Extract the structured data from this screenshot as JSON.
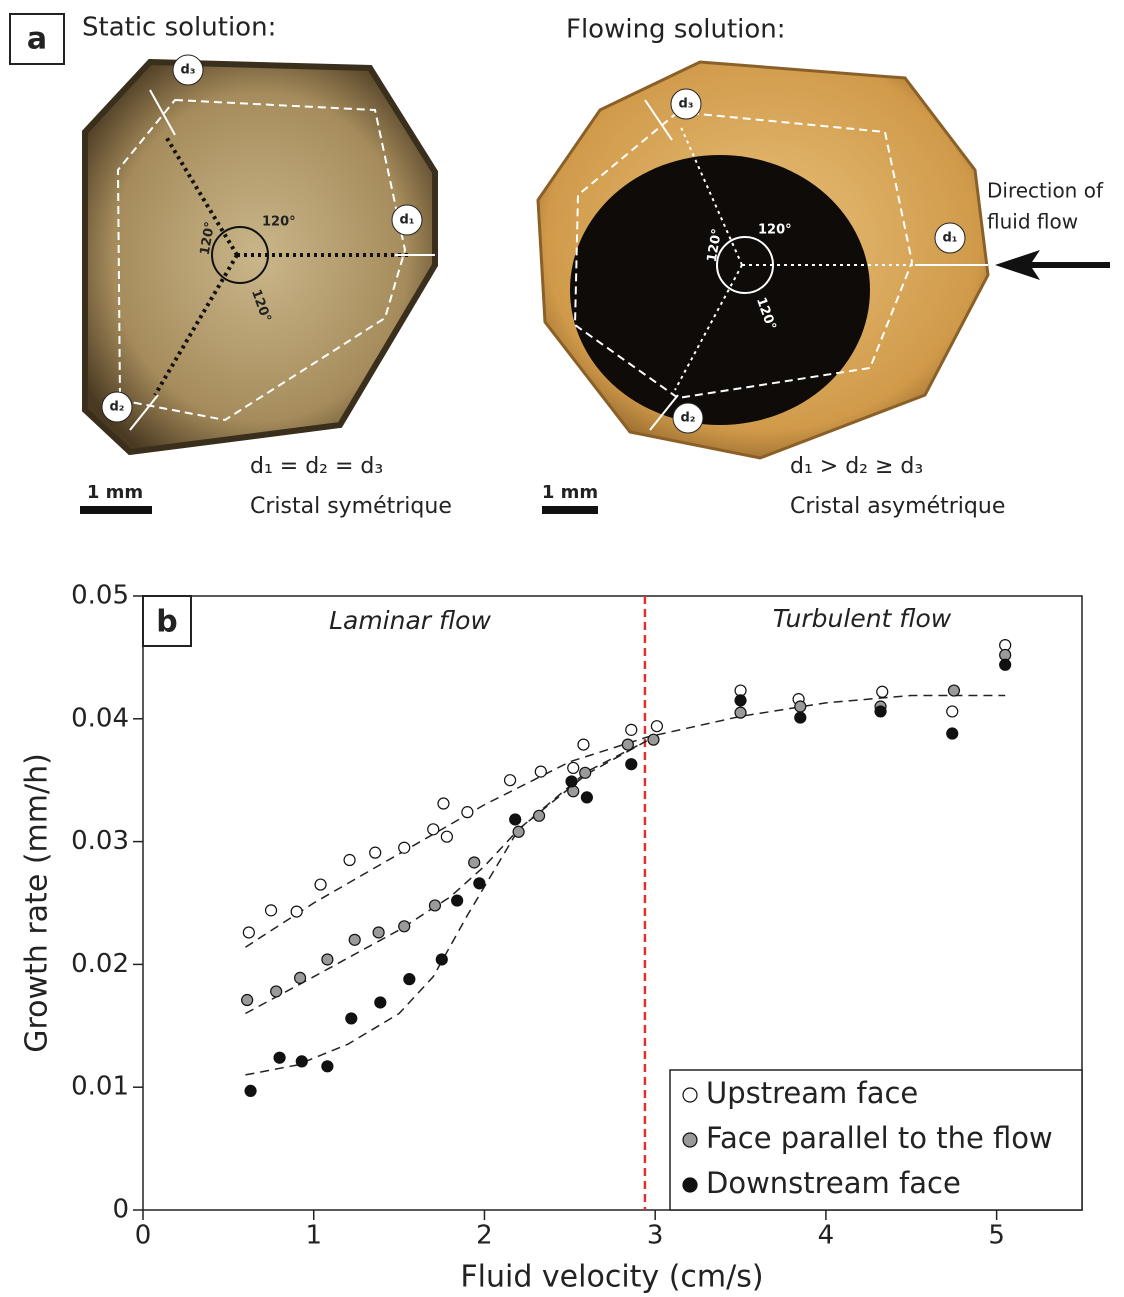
{
  "panel_a": {
    "label": "a",
    "static": {
      "title": "Static solution:",
      "d_labels": [
        "d₁",
        "d₂",
        "d₃"
      ],
      "angles": [
        "120°",
        "120°",
        "120°"
      ],
      "relation": "d₁ = d₂ = d₃",
      "caption": "Cristal symétrique",
      "scale": "1 mm"
    },
    "flowing": {
      "title": "Flowing solution:",
      "d_labels": [
        "d₁",
        "d₂",
        "d₃"
      ],
      "angles": [
        "120°",
        "120°",
        "120°"
      ],
      "flow_label": [
        "Direction of",
        "fluid flow"
      ],
      "relation": "d₁ > d₂ ≥ d₃",
      "caption": "Cristal asymétrique",
      "scale": "1 mm"
    }
  },
  "chart_data": {
    "type": "scatter",
    "panel_label": "b",
    "x_label": "Fluid velocity (cm/s)",
    "y_label": "Growth rate (mm/h)",
    "annotations": [
      "Laminar flow",
      "Turbulent flow"
    ],
    "xlim": [
      0,
      5.5
    ],
    "xticks": [
      0,
      1,
      2,
      3,
      4,
      5
    ],
    "ylim": [
      0,
      0.05
    ],
    "yticks": [
      0,
      0.01,
      0.02,
      0.03,
      0.04,
      0.05
    ],
    "threshold_x": 2.94,
    "threshold_color": "#e03030",
    "legend": "lower right",
    "series": [
      {
        "name": "Upstream face",
        "color": "#ffffff",
        "x": [
          0.62,
          0.75,
          0.9,
          1.04,
          1.21,
          1.36,
          1.53,
          1.7,
          1.76,
          1.78,
          1.9,
          2.15,
          2.33,
          2.52,
          2.58,
          2.86,
          3.01,
          3.5,
          3.84,
          4.33,
          4.74,
          5.05
        ],
        "values": [
          0.0226,
          0.0244,
          0.0243,
          0.0265,
          0.0285,
          0.0291,
          0.0295,
          0.031,
          0.0331,
          0.0304,
          0.0324,
          0.035,
          0.0357,
          0.036,
          0.0379,
          0.0391,
          0.0394,
          0.0423,
          0.0416,
          0.0422,
          0.0406,
          0.046
        ]
      },
      {
        "name": "Face parallel to the flow",
        "color": "#9a9a9a",
        "x": [
          0.61,
          0.78,
          0.92,
          1.08,
          1.24,
          1.38,
          1.53,
          1.71,
          1.94,
          2.2,
          2.32,
          2.52,
          2.59,
          2.84,
          2.99,
          3.5,
          3.85,
          4.32,
          4.75,
          5.05
        ],
        "values": [
          0.0171,
          0.0178,
          0.0189,
          0.0204,
          0.022,
          0.0226,
          0.0231,
          0.0248,
          0.0283,
          0.0308,
          0.0321,
          0.0341,
          0.0356,
          0.0379,
          0.0383,
          0.0405,
          0.041,
          0.041,
          0.0423,
          0.0452
        ]
      },
      {
        "name": "Downstream face",
        "color": "#111111",
        "x": [
          0.63,
          0.8,
          0.93,
          1.08,
          1.22,
          1.39,
          1.56,
          1.75,
          1.84,
          1.97,
          2.18,
          2.51,
          2.6,
          2.86,
          3.5,
          3.85,
          4.32,
          4.74,
          5.05
        ],
        "values": [
          0.0097,
          0.0124,
          0.0121,
          0.0117,
          0.0156,
          0.0169,
          0.0188,
          0.0204,
          0.0252,
          0.0266,
          0.0318,
          0.0349,
          0.0336,
          0.0363,
          0.0415,
          0.0401,
          0.0406,
          0.0388,
          0.0444
        ]
      }
    ],
    "trendlines": [
      {
        "x": [
          0.6,
          1.0,
          1.5,
          2.0,
          2.5,
          2.95,
          3.5,
          4.0,
          4.5,
          5.05
        ],
        "values": [
          0.0214,
          0.025,
          0.029,
          0.033,
          0.0365,
          0.0385,
          0.0402,
          0.0413,
          0.0419,
          0.0419
        ]
      },
      {
        "x": [
          0.6,
          1.0,
          1.5,
          1.8,
          2.0,
          2.2,
          2.6,
          2.95
        ],
        "values": [
          0.016,
          0.019,
          0.0228,
          0.0255,
          0.028,
          0.031,
          0.0355,
          0.0382
        ]
      },
      {
        "x": [
          0.6,
          0.9,
          1.2,
          1.5,
          1.7,
          1.9,
          2.2,
          2.6,
          2.95
        ],
        "values": [
          0.011,
          0.0118,
          0.0135,
          0.016,
          0.019,
          0.024,
          0.031,
          0.0357,
          0.0382
        ]
      }
    ]
  }
}
